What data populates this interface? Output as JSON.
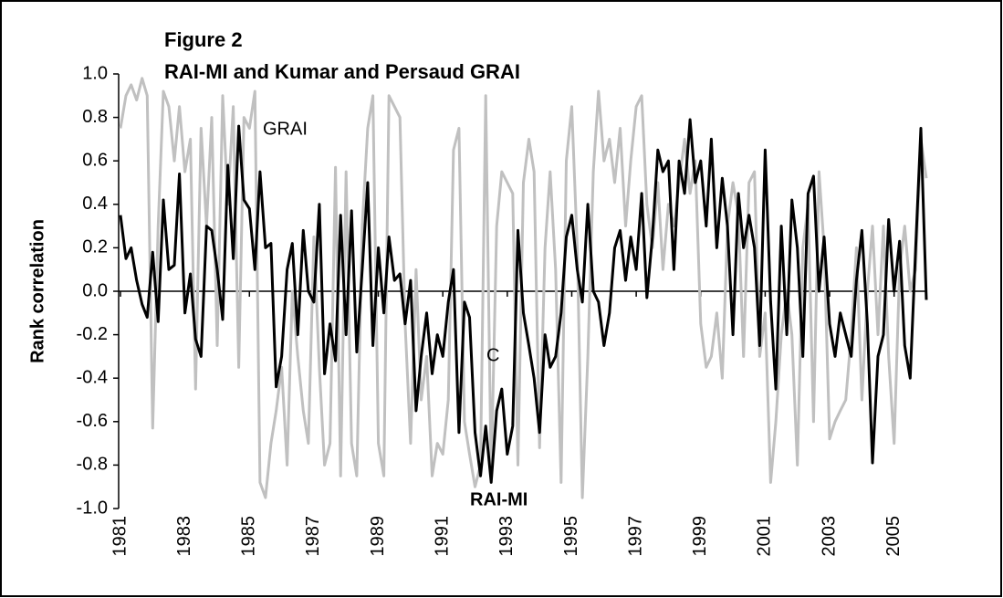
{
  "chart_data": {
    "type": "line",
    "title": "Figure 2",
    "subtitle": "RAI-MI and Kumar and Persaud GRAI",
    "y_label": "Rank correlation",
    "annotations": [
      "GRAI",
      "C",
      "RAI-MI"
    ],
    "x": [
      1981,
      1981.17,
      1981.33,
      1981.5,
      1981.67,
      1981.83,
      1982,
      1982.17,
      1982.33,
      1982.5,
      1982.67,
      1982.83,
      1983,
      1983.17,
      1983.33,
      1983.5,
      1983.67,
      1983.83,
      1984,
      1984.17,
      1984.33,
      1984.5,
      1984.67,
      1984.83,
      1985,
      1985.17,
      1985.33,
      1985.5,
      1985.67,
      1985.83,
      1986,
      1986.17,
      1986.33,
      1986.5,
      1986.67,
      1986.83,
      1987,
      1987.17,
      1987.33,
      1987.5,
      1987.67,
      1987.83,
      1988,
      1988.17,
      1988.33,
      1988.5,
      1988.67,
      1988.83,
      1989,
      1989.17,
      1989.33,
      1989.5,
      1989.67,
      1989.83,
      1990,
      1990.17,
      1990.33,
      1990.5,
      1990.67,
      1990.83,
      1991,
      1991.17,
      1991.33,
      1991.5,
      1991.67,
      1991.83,
      1992,
      1992.17,
      1992.33,
      1992.5,
      1992.67,
      1992.83,
      1993,
      1993.17,
      1993.33,
      1993.5,
      1993.67,
      1993.83,
      1994,
      1994.17,
      1994.33,
      1994.5,
      1994.67,
      1994.83,
      1995,
      1995.17,
      1995.33,
      1995.5,
      1995.67,
      1995.83,
      1996,
      1996.17,
      1996.33,
      1996.5,
      1996.67,
      1996.83,
      1997,
      1997.17,
      1997.33,
      1997.5,
      1997.67,
      1997.83,
      1998,
      1998.17,
      1998.33,
      1998.5,
      1998.67,
      1998.83,
      1999,
      1999.17,
      1999.33,
      1999.5,
      1999.67,
      1999.83,
      2000,
      2000.17,
      2000.33,
      2000.5,
      2000.67,
      2000.83,
      2001,
      2001.17,
      2001.33,
      2001.5,
      2001.67,
      2001.83,
      2002,
      2002.17,
      2002.33,
      2002.5,
      2002.67,
      2002.83,
      2003,
      2003.17,
      2003.33,
      2003.5,
      2003.67,
      2003.83,
      2004,
      2004.17,
      2004.33,
      2004.5,
      2004.67,
      2004.83,
      2005,
      2005.17,
      2005.33,
      2005.5,
      2005.67,
      2005.83,
      2006
    ],
    "series": [
      {
        "name": "GRAI",
        "color": "#c0c0c0",
        "values": [
          0.75,
          0.9,
          0.95,
          0.88,
          0.98,
          0.9,
          -0.63,
          0.3,
          0.92,
          0.85,
          0.6,
          0.85,
          0.55,
          0.7,
          -0.45,
          0.75,
          0.3,
          0.8,
          -0.25,
          0.9,
          0.4,
          0.85,
          -0.35,
          0.8,
          0.75,
          0.92,
          -0.88,
          -0.95,
          -0.7,
          -0.55,
          -0.35,
          -0.8,
          0.0,
          -0.3,
          -0.55,
          -0.7,
          0.25,
          -0.35,
          -0.8,
          -0.7,
          0.57,
          -0.85,
          0.55,
          -0.7,
          -0.85,
          0.3,
          0.75,
          0.9,
          -0.7,
          -0.85,
          0.9,
          0.85,
          0.8,
          -0.15,
          -0.7,
          0.1,
          -0.5,
          -0.3,
          -0.85,
          -0.7,
          -0.75,
          -0.5,
          0.65,
          0.75,
          -0.6,
          -0.75,
          -0.9,
          -0.8,
          0.9,
          -0.85,
          0.3,
          0.55,
          0.5,
          0.45,
          -0.8,
          0.5,
          0.7,
          0.55,
          -0.72,
          0.2,
          0.55,
          0.1,
          -0.88,
          0.6,
          0.85,
          0.2,
          -0.95,
          -0.3,
          0.55,
          0.92,
          0.6,
          0.7,
          0.5,
          0.75,
          0.3,
          0.6,
          0.85,
          0.9,
          0.4,
          0.2,
          0.5,
          0.1,
          0.4,
          0.3,
          0.5,
          0.7,
          0.45,
          0.6,
          -0.15,
          -0.35,
          -0.3,
          -0.1,
          -0.4,
          0.3,
          0.5,
          0.35,
          -0.3,
          0.5,
          0.55,
          -0.3,
          -0.1,
          -0.88,
          -0.6,
          -0.2,
          0.0,
          -0.2,
          -0.8,
          0.2,
          0.4,
          -0.6,
          0.55,
          0.2,
          -0.68,
          -0.6,
          -0.55,
          -0.5,
          -0.2,
          0.2,
          -0.5,
          0.0,
          0.3,
          -0.2,
          0.3,
          -0.3,
          -0.7,
          0.1,
          0.3,
          0.0,
          0.1,
          0.7,
          0.52
        ]
      },
      {
        "name": "RAI-MI",
        "color": "#000000",
        "values": [
          0.35,
          0.15,
          0.2,
          0.05,
          -0.06,
          -0.12,
          0.18,
          -0.14,
          0.42,
          0.1,
          0.12,
          0.54,
          -0.1,
          0.08,
          -0.22,
          -0.3,
          0.3,
          0.28,
          0.1,
          -0.13,
          0.58,
          0.15,
          0.76,
          0.42,
          0.38,
          0.1,
          0.55,
          0.2,
          0.22,
          -0.44,
          -0.3,
          0.1,
          0.22,
          -0.2,
          0.28,
          0.0,
          -0.05,
          0.4,
          -0.38,
          -0.15,
          -0.32,
          0.35,
          -0.2,
          0.37,
          -0.28,
          0.1,
          0.5,
          -0.25,
          0.2,
          -0.1,
          0.25,
          0.05,
          0.08,
          -0.15,
          0.05,
          -0.55,
          -0.3,
          -0.1,
          -0.38,
          -0.2,
          -0.3,
          -0.05,
          0.1,
          -0.65,
          -0.05,
          -0.12,
          -0.65,
          -0.85,
          -0.62,
          -0.88,
          -0.55,
          -0.45,
          -0.75,
          -0.62,
          0.28,
          -0.1,
          -0.25,
          -0.4,
          -0.65,
          -0.2,
          -0.35,
          -0.3,
          -0.1,
          0.25,
          0.35,
          0.1,
          -0.05,
          0.4,
          0.0,
          -0.05,
          -0.25,
          -0.1,
          0.2,
          0.28,
          0.05,
          0.25,
          0.1,
          0.45,
          -0.03,
          0.25,
          0.65,
          0.55,
          0.6,
          0.1,
          0.6,
          0.45,
          0.79,
          0.5,
          0.6,
          0.3,
          0.7,
          0.2,
          0.52,
          0.3,
          -0.2,
          0.45,
          0.2,
          0.35,
          0.2,
          -0.25,
          0.65,
          -0.05,
          -0.45,
          0.3,
          -0.2,
          0.42,
          0.2,
          -0.3,
          0.45,
          0.53,
          0.0,
          0.25,
          -0.15,
          -0.3,
          -0.1,
          -0.2,
          -0.3,
          0.05,
          0.28,
          -0.15,
          -0.79,
          -0.3,
          -0.2,
          0.33,
          0.0,
          0.23,
          -0.25,
          -0.4,
          0.2,
          0.75,
          -0.04
        ]
      }
    ],
    "xlim": [
      1981,
      2006
    ],
    "xticks": [
      1981,
      1983,
      1985,
      1987,
      1989,
      1991,
      1993,
      1995,
      1997,
      1999,
      2001,
      2003,
      2005
    ],
    "ylim": [
      -1,
      1
    ],
    "yticks": [
      {
        "value": 1,
        "label": "1.0"
      },
      0.8,
      0.6,
      0.4,
      0.2,
      {
        "value": 0,
        "label": "0.0"
      },
      -0.2,
      -0.4,
      -0.6,
      -0.8,
      {
        "value": -1,
        "label": "-1.0"
      }
    ]
  }
}
